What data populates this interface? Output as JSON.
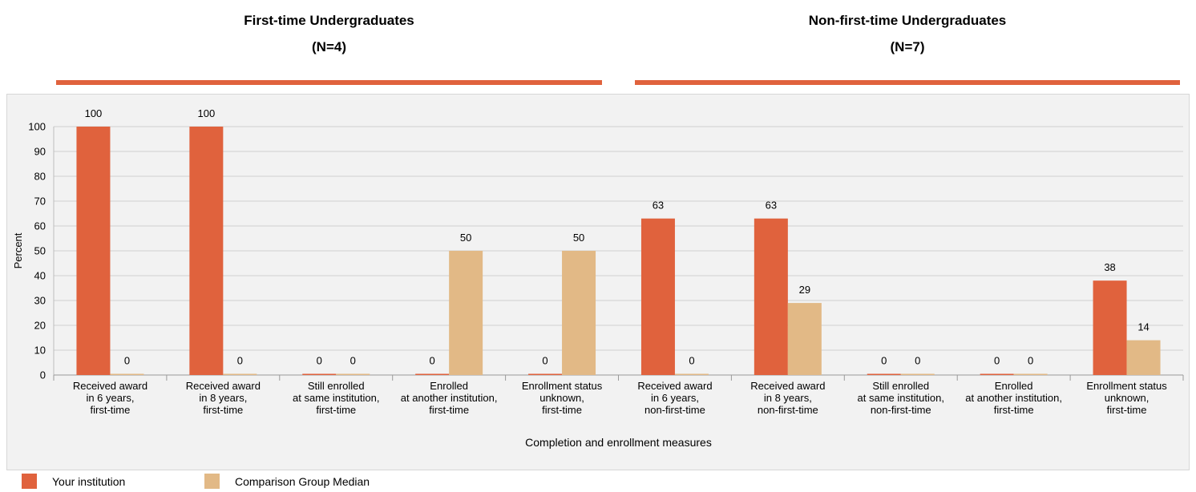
{
  "groups": [
    {
      "title": "First-time Undergraduates",
      "n": "(N=4)"
    },
    {
      "title": "Non-first-time Undergraduates",
      "n": "(N=7)"
    }
  ],
  "colors": {
    "institution": "#e0623d",
    "comparison": "#e2b986"
  },
  "chart_data": {
    "type": "bar",
    "xlabel": "Completion and enrollment measures",
    "ylabel": "Percent",
    "ylim": [
      0,
      100
    ],
    "yticks": [
      0,
      10,
      20,
      30,
      40,
      50,
      60,
      70,
      80,
      90,
      100
    ],
    "grid": true,
    "legend_position": "bottom-left",
    "categories": [
      [
        "Received award",
        "in 6 years,",
        "first-time"
      ],
      [
        "Received award",
        "in 8 years,",
        "first-time"
      ],
      [
        "Still enrolled",
        "at same institution,",
        "first-time"
      ],
      [
        "Enrolled",
        "at another institution,",
        "first-time"
      ],
      [
        "Enrollment status",
        "unknown,",
        "first-time"
      ],
      [
        "Received award",
        "in 6 years,",
        "non-first-time"
      ],
      [
        "Received award",
        "in 8 years,",
        "non-first-time"
      ],
      [
        "Still enrolled",
        "at same institution,",
        "non-first-time"
      ],
      [
        "Enrolled",
        "at another institution,",
        "first-time"
      ],
      [
        "Enrollment status",
        "unknown,",
        "first-time"
      ]
    ],
    "series": [
      {
        "name": "Your institution",
        "values": [
          100,
          100,
          0,
          0,
          0,
          63,
          63,
          0,
          0,
          38
        ]
      },
      {
        "name": "Comparison Group Median",
        "values": [
          0,
          0,
          0,
          50,
          50,
          0,
          29,
          0,
          0,
          14
        ]
      }
    ]
  }
}
